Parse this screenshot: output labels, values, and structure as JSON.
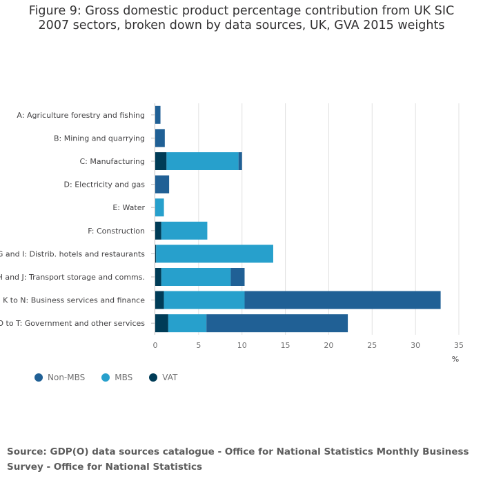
{
  "title_line1": "Figure 9: Gross domestic product percentage contribution from UK SIC",
  "title_line2": "2007 sectors, broken down by data sources, UK, GVA 2015 weights",
  "source": "Source: GDP(O) data sources catalogue - Office for National Statistics Monthly Business Survey - Office for National Statistics",
  "chart_data": {
    "type": "bar",
    "orientation": "horizontal",
    "stacked": true,
    "title": "Figure 9: Gross domestic product percentage contribution from UK SIC 2007 sectors, broken down by data sources, UK, GVA 2015 weights",
    "xlabel": "%",
    "ylabel": "",
    "xlim": [
      0,
      35
    ],
    "xticks": [
      0,
      5,
      10,
      15,
      20,
      25,
      30,
      35
    ],
    "grid": true,
    "legend_position": "bottom-left",
    "categories": [
      "A: Agriculture forestry and fishing",
      "B: Mining and quarrying",
      "C: Manufacturing",
      "D: Electricity and gas",
      "E: Water",
      "F: Construction",
      "G and I: Distrib. hotels and restaurants",
      "H and J: Transport storage and comms.",
      "K to N: Business services and finance",
      "O to T: Government and other services"
    ],
    "stack_order": [
      "VAT",
      "MBS",
      "Non-MBS"
    ],
    "series": [
      {
        "name": "Non-MBS",
        "color": "#206095",
        "values": [
          0.6,
          1.1,
          0.4,
          1.6,
          0.0,
          0.0,
          0.0,
          1.6,
          22.6,
          16.3
        ]
      },
      {
        "name": "MBS",
        "color": "#27a0cc",
        "values": [
          0.0,
          0.0,
          8.3,
          0.0,
          1.0,
          5.3,
          13.5,
          8.0,
          9.3,
          4.4
        ]
      },
      {
        "name": "VAT",
        "color": "#003c57",
        "values": [
          0.0,
          0.0,
          1.3,
          0.0,
          0.0,
          0.7,
          0.1,
          0.7,
          1.0,
          1.5
        ]
      }
    ]
  }
}
